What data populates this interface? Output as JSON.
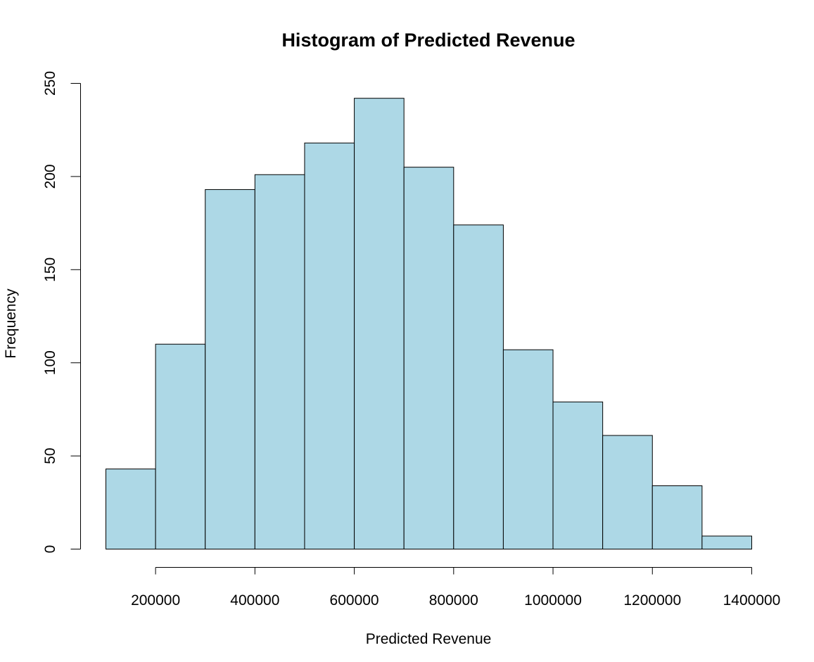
{
  "chart_data": {
    "type": "bar",
    "title": "Histogram of Predicted Revenue",
    "xlabel": "Predicted Revenue",
    "ylabel": "Frequency",
    "bin_edges": [
      100000,
      200000,
      300000,
      400000,
      500000,
      600000,
      700000,
      800000,
      900000,
      1000000,
      1100000,
      1200000,
      1300000,
      1400000
    ],
    "values": [
      43,
      110,
      193,
      201,
      218,
      242,
      205,
      174,
      107,
      79,
      61,
      34,
      7
    ],
    "xlim": [
      100000,
      1400000
    ],
    "ylim": [
      0,
      250
    ],
    "x_ticks": [
      200000,
      400000,
      600000,
      800000,
      1000000,
      1200000,
      1400000
    ],
    "x_tick_labels": [
      "200000",
      "400000",
      "600000",
      "800000",
      "1000000",
      "1200000",
      "1400000"
    ],
    "y_ticks": [
      0,
      50,
      100,
      150,
      200,
      250
    ],
    "y_tick_labels": [
      "0",
      "50",
      "100",
      "150",
      "200",
      "250"
    ],
    "bar_color": "#add8e6",
    "grid": false
  }
}
